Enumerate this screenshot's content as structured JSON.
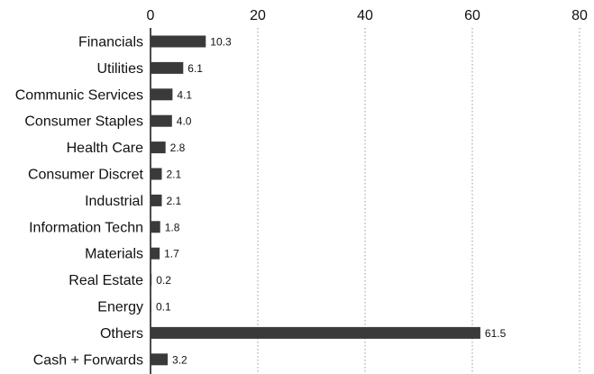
{
  "chart_data": {
    "type": "bar",
    "orientation": "horizontal",
    "categories": [
      "Financials",
      "Utilities",
      "Communic Services",
      "Consumer Staples",
      "Health Care",
      "Consumer Discret",
      "Industrial",
      "Information Techn",
      "Materials",
      "Real Estate",
      "Energy",
      "Others",
      "Cash + Forwards"
    ],
    "values": [
      10.3,
      6.1,
      4.1,
      4.0,
      2.8,
      2.1,
      2.1,
      1.8,
      1.7,
      0.2,
      0.1,
      61.5,
      3.2
    ],
    "value_labels": [
      "10.3",
      "6.1",
      "4.1",
      "4.0",
      "2.8",
      "2.1",
      "2.1",
      "1.8",
      "1.7",
      "0.2",
      "0.1",
      "61.5",
      "3.2"
    ],
    "xlim": [
      0,
      80
    ],
    "x_ticks": [
      0,
      20,
      40,
      60,
      80
    ],
    "x_tick_labels": [
      "0",
      "20",
      "40",
      "60",
      "80"
    ],
    "x_axis_position": "top",
    "grid": "vertical dotted",
    "legend": "none",
    "title": "",
    "xlabel": "",
    "ylabel": "",
    "colors": {
      "bar": "#3a3a3a",
      "grid": "#9a9a9a",
      "axis": "#000000",
      "text": "#111111"
    }
  }
}
